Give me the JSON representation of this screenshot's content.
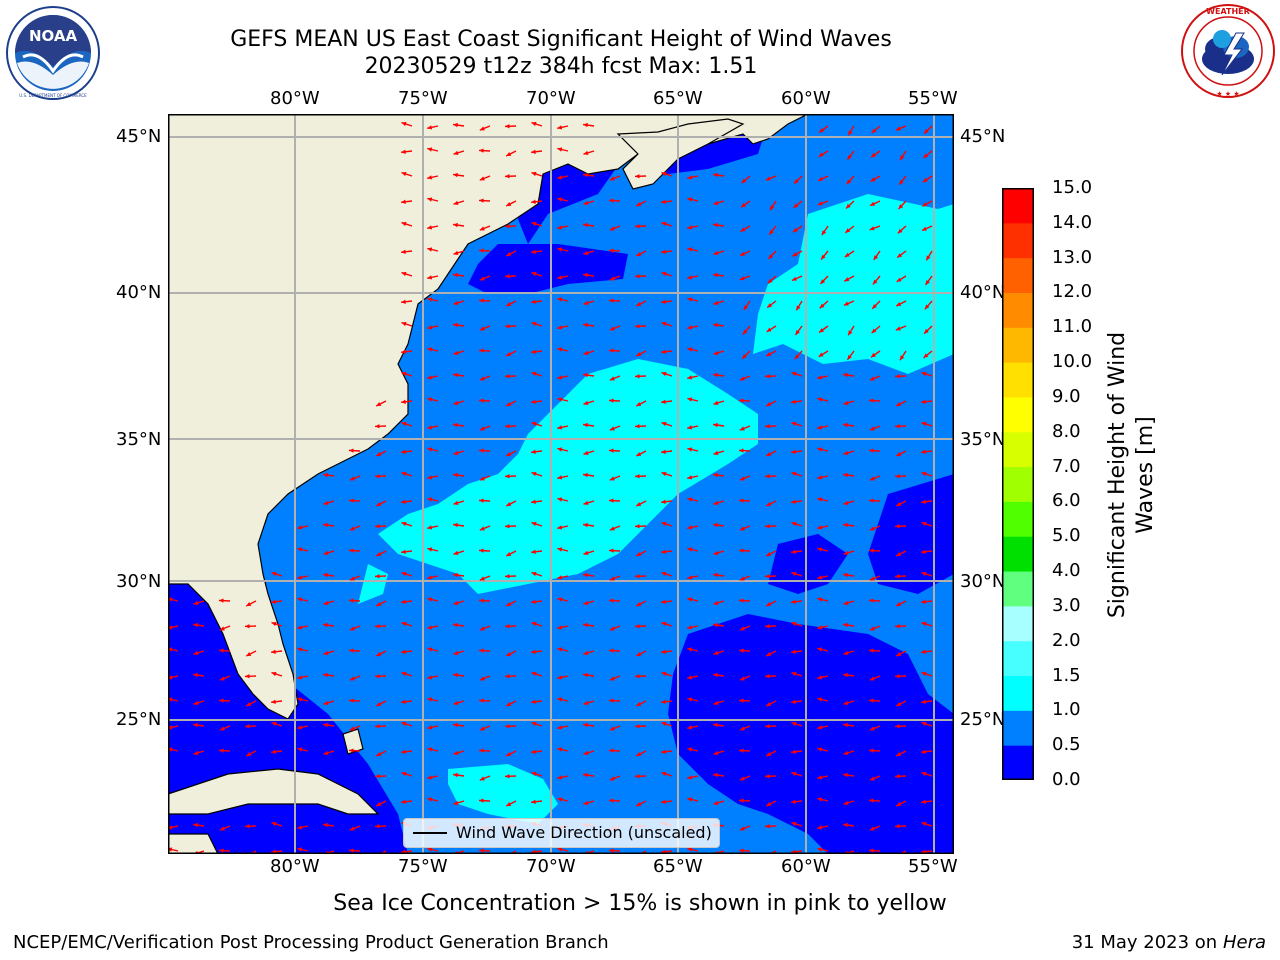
{
  "title": {
    "line1": "GEFS MEAN US East Coast Significant Height of Wind Waves",
    "line2": "20230529 t12z 384h fcst   Max: 1.51"
  },
  "logos": {
    "left": {
      "name": "noaa-logo",
      "text": "NOAA",
      "ring_text": "NATIONAL OCEANIC AND ATMOSPHERIC ADMINISTRATION · U.S. DEPARTMENT OF COMMERCE"
    },
    "right": {
      "name": "nws-logo",
      "ring_text": "NATIONAL WEATHER SERVICE"
    }
  },
  "map": {
    "lon_labels": [
      "80°W",
      "75°W",
      "70°W",
      "65°W",
      "60°W",
      "55°W"
    ],
    "lat_labels": [
      "45°N",
      "40°N",
      "35°N",
      "30°N",
      "25°N"
    ],
    "extent": {
      "lon_min": -85,
      "lon_max": -54.5,
      "lat_min": 20.5,
      "lat_max": 46
    },
    "gridlines": true,
    "legend_label": "Wind Wave Direction (unscaled)",
    "legend_placement": "lower-center",
    "arrow_color": "#ff0000",
    "land_color": "#efefdb"
  },
  "colorbar": {
    "label": "Significant Height of Wind Waves [m]",
    "label_line1": "Significant Height of Wind",
    "label_line2": "Waves [m]",
    "ticks": [
      "0.0",
      "0.5",
      "1.0",
      "1.5",
      "2.0",
      "3.0",
      "4.0",
      "5.0",
      "6.0",
      "7.0",
      "8.0",
      "9.0",
      "10.0",
      "11.0",
      "12.0",
      "13.0",
      "14.0",
      "15.0"
    ],
    "colors": [
      "#0000ff",
      "#0080ff",
      "#00ffff",
      "#48ffff",
      "#a8ffff",
      "#60ff80",
      "#00e000",
      "#50ff00",
      "#a0ff00",
      "#d8ff00",
      "#ffff00",
      "#ffe000",
      "#ffb800",
      "#ff8c00",
      "#ff6000",
      "#ff3000",
      "#ff0000"
    ]
  },
  "subcaption": "Sea Ice Concentration > 15% is shown in pink to yellow",
  "footer": {
    "left": "NCEP/EMC/Verification Post Processing Product Generation Branch",
    "right_date": "31 May 2023 on",
    "right_machine": "Hera"
  }
}
